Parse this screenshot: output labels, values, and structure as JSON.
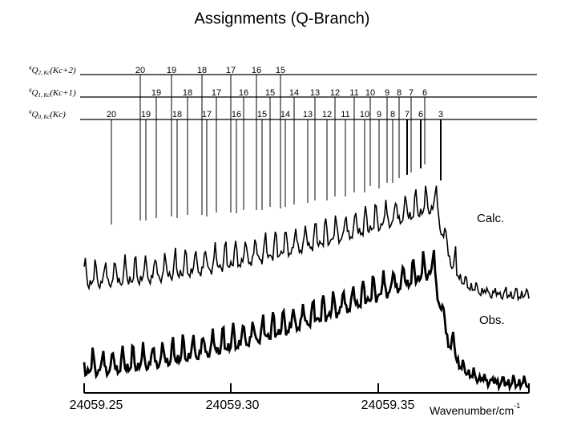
{
  "title": "Assignments (Q-Branch)",
  "rows": [
    {
      "sup": "q",
      "main": "Q",
      "sub": "2, Kc",
      "tail": "(Kc+2)",
      "labels": [
        "20",
        "19",
        "18",
        "17",
        "16",
        "15"
      ]
    },
    {
      "sup": "q",
      "main": "Q",
      "sub": "1, Kc",
      "tail": "(Kc+1)",
      "labels": [
        "19",
        "18",
        "17",
        "16",
        "15",
        "14",
        "13",
        "12",
        "11",
        "10",
        "9",
        "8",
        "7",
        "6"
      ]
    },
    {
      "sup": "q",
      "main": "Q",
      "sub": "0, Kc",
      "tail": "(Kc)",
      "labels": [
        "20",
        "19",
        "18",
        "17",
        "16",
        "15",
        "14",
        "13",
        "12",
        "11",
        "10",
        "9",
        "8",
        "7",
        "6",
        "3"
      ]
    }
  ],
  "traces": [
    "Calc.",
    "Obs."
  ],
  "axis": {
    "ticks": [
      "24059.25",
      "24059.30",
      "24059.35"
    ],
    "label": "Wavenumber/cm",
    "label_sup": "-1"
  }
}
